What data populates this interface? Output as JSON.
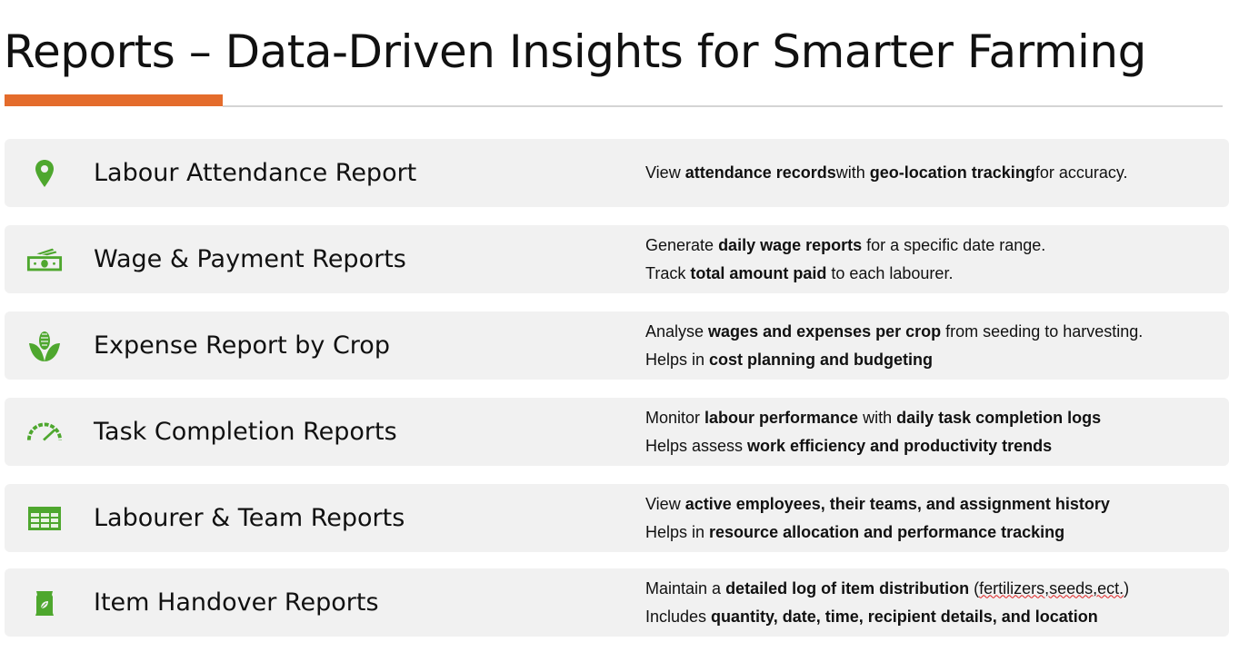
{
  "title": "Reports – Data-Driven Insights for Smarter Farming",
  "colors": {
    "accent": "#E46C2C",
    "icon": "#4EA72E",
    "row_bg": "#F1F1F1"
  },
  "reports": [
    {
      "icon": "map-pin-icon",
      "label": "Labour Attendance Report",
      "lines": [
        [
          {
            "t": "View ",
            "b": false
          },
          {
            "t": "attendance records",
            "b": true
          },
          {
            "t": "with ",
            "b": false
          },
          {
            "t": "geo-location tracking",
            "b": true
          },
          {
            "t": "for accuracy.",
            "b": false
          }
        ]
      ]
    },
    {
      "icon": "money-icon",
      "label": "Wage & Payment Reports",
      "lines": [
        [
          {
            "t": "Generate ",
            "b": false
          },
          {
            "t": "daily wage reports",
            "b": true
          },
          {
            "t": " for a specific date range.",
            "b": false
          }
        ],
        [
          {
            "t": "Track ",
            "b": false
          },
          {
            "t": "total amount paid",
            "b": true
          },
          {
            "t": " to each labourer.",
            "b": false
          }
        ]
      ]
    },
    {
      "icon": "corn-icon",
      "label": "Expense Report by Crop",
      "lines": [
        [
          {
            "t": "Analyse ",
            "b": false
          },
          {
            "t": "wages and expenses per crop",
            "b": true
          },
          {
            "t": " from seeding to harvesting.",
            "b": false
          }
        ],
        [
          {
            "t": "Helps in ",
            "b": false
          },
          {
            "t": "cost planning and budgeting",
            "b": true
          }
        ]
      ]
    },
    {
      "icon": "speedometer-icon",
      "label": "Task Completion Reports",
      "lines": [
        [
          {
            "t": "Monitor ",
            "b": false
          },
          {
            "t": "labour performance",
            "b": true
          },
          {
            "t": " with ",
            "b": false
          },
          {
            "t": "daily task completion logs",
            "b": true
          }
        ],
        [
          {
            "t": "Helps assess ",
            "b": false
          },
          {
            "t": "work efficiency and productivity trends",
            "b": true
          }
        ]
      ]
    },
    {
      "icon": "table-icon",
      "label": "Labourer & Team Reports",
      "lines": [
        [
          {
            "t": "View ",
            "b": false
          },
          {
            "t": "active employees, their teams, and assignment history",
            "b": true
          }
        ],
        [
          {
            "t": "Helps in ",
            "b": false
          },
          {
            "t": "resource allocation and performance tracking",
            "b": true
          }
        ]
      ]
    },
    {
      "icon": "seed-bag-icon",
      "label": "Item Handover Reports",
      "lines": [
        [
          {
            "t": "Maintain a ",
            "b": false
          },
          {
            "t": "detailed log of item distribution",
            "b": true
          },
          {
            "t": " (",
            "b": false
          },
          {
            "t": "fertilizers,seeds,ect.",
            "b": false,
            "spell": true
          },
          {
            "t": ")",
            "b": false
          }
        ],
        [
          {
            "t": "Includes ",
            "b": false
          },
          {
            "t": "quantity, date, time, recipient details, and location",
            "b": true
          }
        ]
      ]
    }
  ]
}
